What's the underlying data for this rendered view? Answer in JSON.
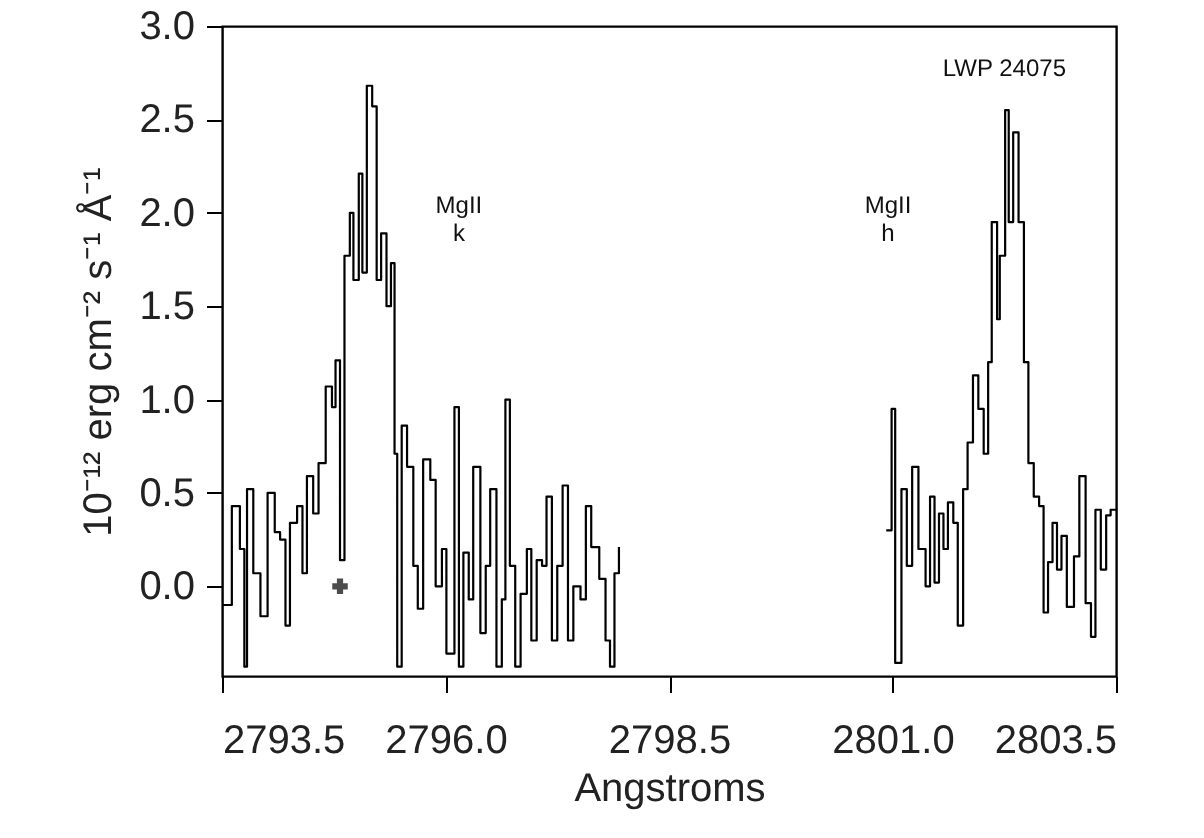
{
  "chart_data": {
    "type": "step",
    "xlabel": "Angstroms",
    "ylabel": "10⁻¹² erg cm⁻² s⁻¹ Å⁻¹",
    "xlim": [
      2793.5,
      2803.5
    ],
    "ylim": [
      -0.48,
      3.0
    ],
    "xticks": [
      2793.5,
      {
        "value": 2796,
        "label": "2796.0"
      },
      2798.5,
      {
        "value": 2801,
        "label": "2801.0"
      },
      2803.5
    ],
    "yticks": [
      {
        "value": 0,
        "label": "0.0"
      },
      0.5,
      {
        "value": 1,
        "label": "1.0"
      },
      1.5,
      {
        "value": 2,
        "label": "2.0"
      },
      2.5,
      {
        "value": 3,
        "label": "3.0"
      }
    ],
    "grid": false,
    "annotations": [
      "MgII\nk",
      "MgII\nh",
      "LWP 24075"
    ],
    "series": [
      {
        "color": "#000000",
        "line_style": "solid",
        "x": [
          2793.5,
          2793.61,
          2793.7,
          2793.75,
          2793.78,
          2793.85,
          2793.93,
          2794.01,
          2794.09,
          2794.15,
          2794.21,
          2794.26,
          2794.34,
          2794.4,
          2794.45,
          2794.52,
          2794.58,
          2794.66,
          2794.73,
          2794.77,
          2794.82,
          2794.87,
          2794.93,
          2794.97,
          2795.03,
          2795.07,
          2795.12,
          2795.18,
          2795.23,
          2795.28,
          2795.34,
          2795.39,
          2795.43,
          2795.46,
          2795.51,
          2795.57,
          2795.64,
          2795.69,
          2795.75,
          2795.83,
          2795.89,
          2795.96,
          2796.01,
          2796.1,
          2796.15,
          2796.2,
          2796.26,
          2796.31,
          2796.39,
          2796.45,
          2796.5,
          2796.57,
          2796.63,
          2796.67,
          2796.72,
          2796.78,
          2796.84,
          2796.91,
          2796.96,
          2797.02,
          2797.08,
          2797.13,
          2797.19,
          2797.25,
          2797.31,
          2797.37,
          2797.43,
          2797.51,
          2797.57,
          2797.63,
          2797.72,
          2797.79,
          2797.84,
          2797.89,
          2797.94,
          2798.0,
          2800.93,
          2800.99,
          2801.03,
          2801.1,
          2801.16,
          2801.22,
          2801.29,
          2801.37,
          2801.42,
          2801.47,
          2801.52,
          2801.57,
          2801.62,
          2801.68,
          2801.73,
          2801.79,
          2801.84,
          2801.9,
          2801.96,
          2802.02,
          2802.07,
          2802.11,
          2802.17,
          2802.2,
          2802.26,
          2802.3,
          2802.35,
          2802.41,
          2802.47,
          2802.52,
          2802.58,
          2802.64,
          2802.69,
          2802.74,
          2802.79,
          2802.84,
          2802.89,
          2802.95,
          2803.03,
          2803.09,
          2803.16,
          2803.22,
          2803.27,
          2803.33,
          2803.39,
          2803.44,
          2803.5
        ],
        "values": [
          -0.1,
          0.43,
          0.2,
          -0.43,
          0.52,
          0.07,
          -0.16,
          0.5,
          0.29,
          0.25,
          -0.21,
          0.34,
          0.43,
          0.07,
          0.59,
          0.39,
          0.66,
          1.07,
          0.96,
          1.21,
          0.14,
          1.77,
          2.0,
          1.64,
          2.21,
          1.68,
          2.68,
          2.57,
          1.64,
          1.89,
          1.5,
          1.73,
          0.71,
          -0.43,
          0.86,
          0.64,
          0.11,
          -0.12,
          0.68,
          0.57,
          0.0,
          0.2,
          -0.36,
          0.96,
          -0.43,
          0.18,
          -0.07,
          0.64,
          -0.25,
          0.11,
          0.52,
          -0.43,
          -0.07,
          1.0,
          0.11,
          -0.43,
          -0.04,
          0.2,
          -0.29,
          0.14,
          0.11,
          0.48,
          -0.29,
          0.11,
          0.54,
          -0.29,
          0.0,
          -0.07,
          0.43,
          0.21,
          0.04,
          -0.29,
          -0.43,
          0.07,
          0.21,
          null,
          0.3,
          0.95,
          -0.41,
          0.52,
          0.11,
          0.64,
          0.2,
          0.0,
          0.48,
          0.02,
          0.39,
          0.2,
          0.45,
          0.34,
          -0.21,
          0.52,
          0.77,
          1.13,
          0.95,
          0.71,
          1.2,
          1.95,
          1.43,
          1.77,
          2.55,
          1.95,
          2.43,
          1.95,
          1.2,
          0.66,
          0.48,
          0.43,
          -0.14,
          0.13,
          0.34,
          0.09,
          0.27,
          -0.11,
          0.16,
          0.59,
          -0.09,
          -0.27,
          0.41,
          0.09,
          0.38,
          0.41,
          0.41
        ]
      },
      {
        "type": "scatter",
        "color": "#000000",
        "marker": "cross",
        "x": [
          2794.82
        ],
        "values": [
          0.0
        ]
      }
    ]
  }
}
